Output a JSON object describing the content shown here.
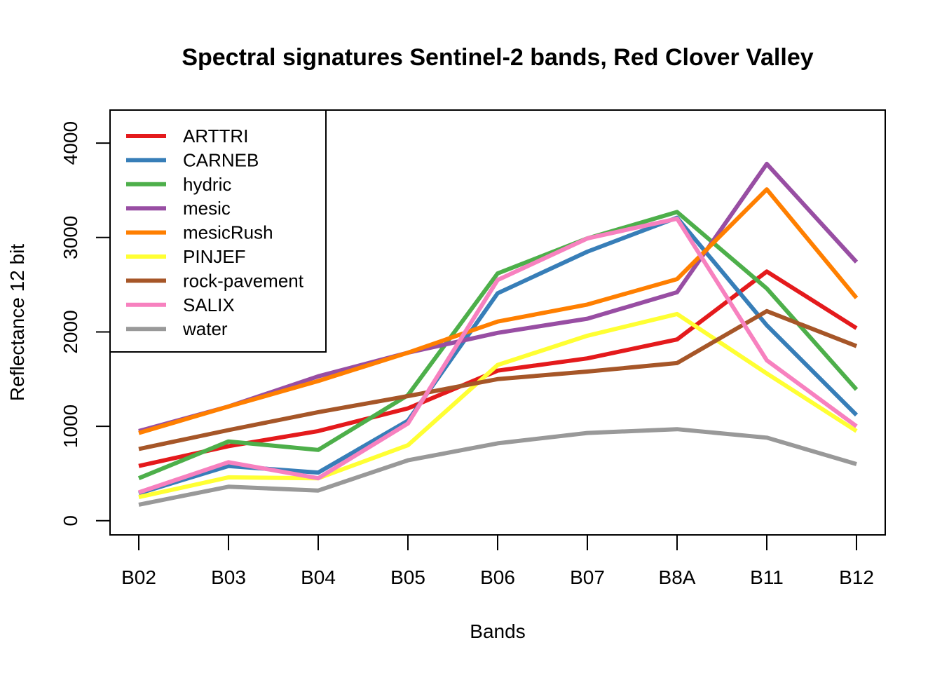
{
  "chart_data": {
    "type": "line",
    "title": "Spectral signatures Sentinel-2 bands, Red Clover Valley",
    "xlabel": "Bands",
    "ylabel": "Reflectance 12 bit",
    "categories": [
      "B02",
      "B03",
      "B04",
      "B05",
      "B06",
      "B07",
      "B8A",
      "B11",
      "B12"
    ],
    "yticks": [
      0,
      1000,
      2000,
      3000,
      4000
    ],
    "ylim": [
      -150,
      4350
    ],
    "grid": false,
    "legend_position": "top-left",
    "series": [
      {
        "name": "ARTTRI",
        "color": "#E41A1C",
        "values": [
          580,
          790,
          950,
          1190,
          1590,
          1720,
          1920,
          2640,
          2040
        ]
      },
      {
        "name": "CARNEB",
        "color": "#377EB8",
        "values": [
          290,
          580,
          510,
          1060,
          2410,
          2850,
          3210,
          2070,
          1120
        ]
      },
      {
        "name": "hydric",
        "color": "#4DAF4A",
        "values": [
          450,
          840,
          750,
          1330,
          2620,
          2990,
          3270,
          2460,
          1390
        ]
      },
      {
        "name": "mesic",
        "color": "#984EA3",
        "values": [
          950,
          1210,
          1530,
          1780,
          1990,
          2140,
          2420,
          3780,
          2740
        ]
      },
      {
        "name": "mesicRush",
        "color": "#FF7F00",
        "values": [
          930,
          1210,
          1480,
          1780,
          2110,
          2290,
          2560,
          3510,
          2360
        ]
      },
      {
        "name": "PINJEF",
        "color": "#FFFF33",
        "values": [
          250,
          460,
          450,
          800,
          1650,
          1960,
          2190,
          1560,
          950
        ]
      },
      {
        "name": "rock-pavement",
        "color": "#A65628",
        "values": [
          760,
          960,
          1150,
          1320,
          1500,
          1580,
          1670,
          2220,
          1850
        ]
      },
      {
        "name": "SALIX",
        "color": "#F781BF",
        "values": [
          300,
          620,
          450,
          1030,
          2550,
          2990,
          3200,
          1700,
          1000
        ]
      },
      {
        "name": "water",
        "color": "#999999",
        "values": [
          170,
          360,
          320,
          640,
          820,
          930,
          970,
          880,
          600
        ]
      }
    ]
  }
}
